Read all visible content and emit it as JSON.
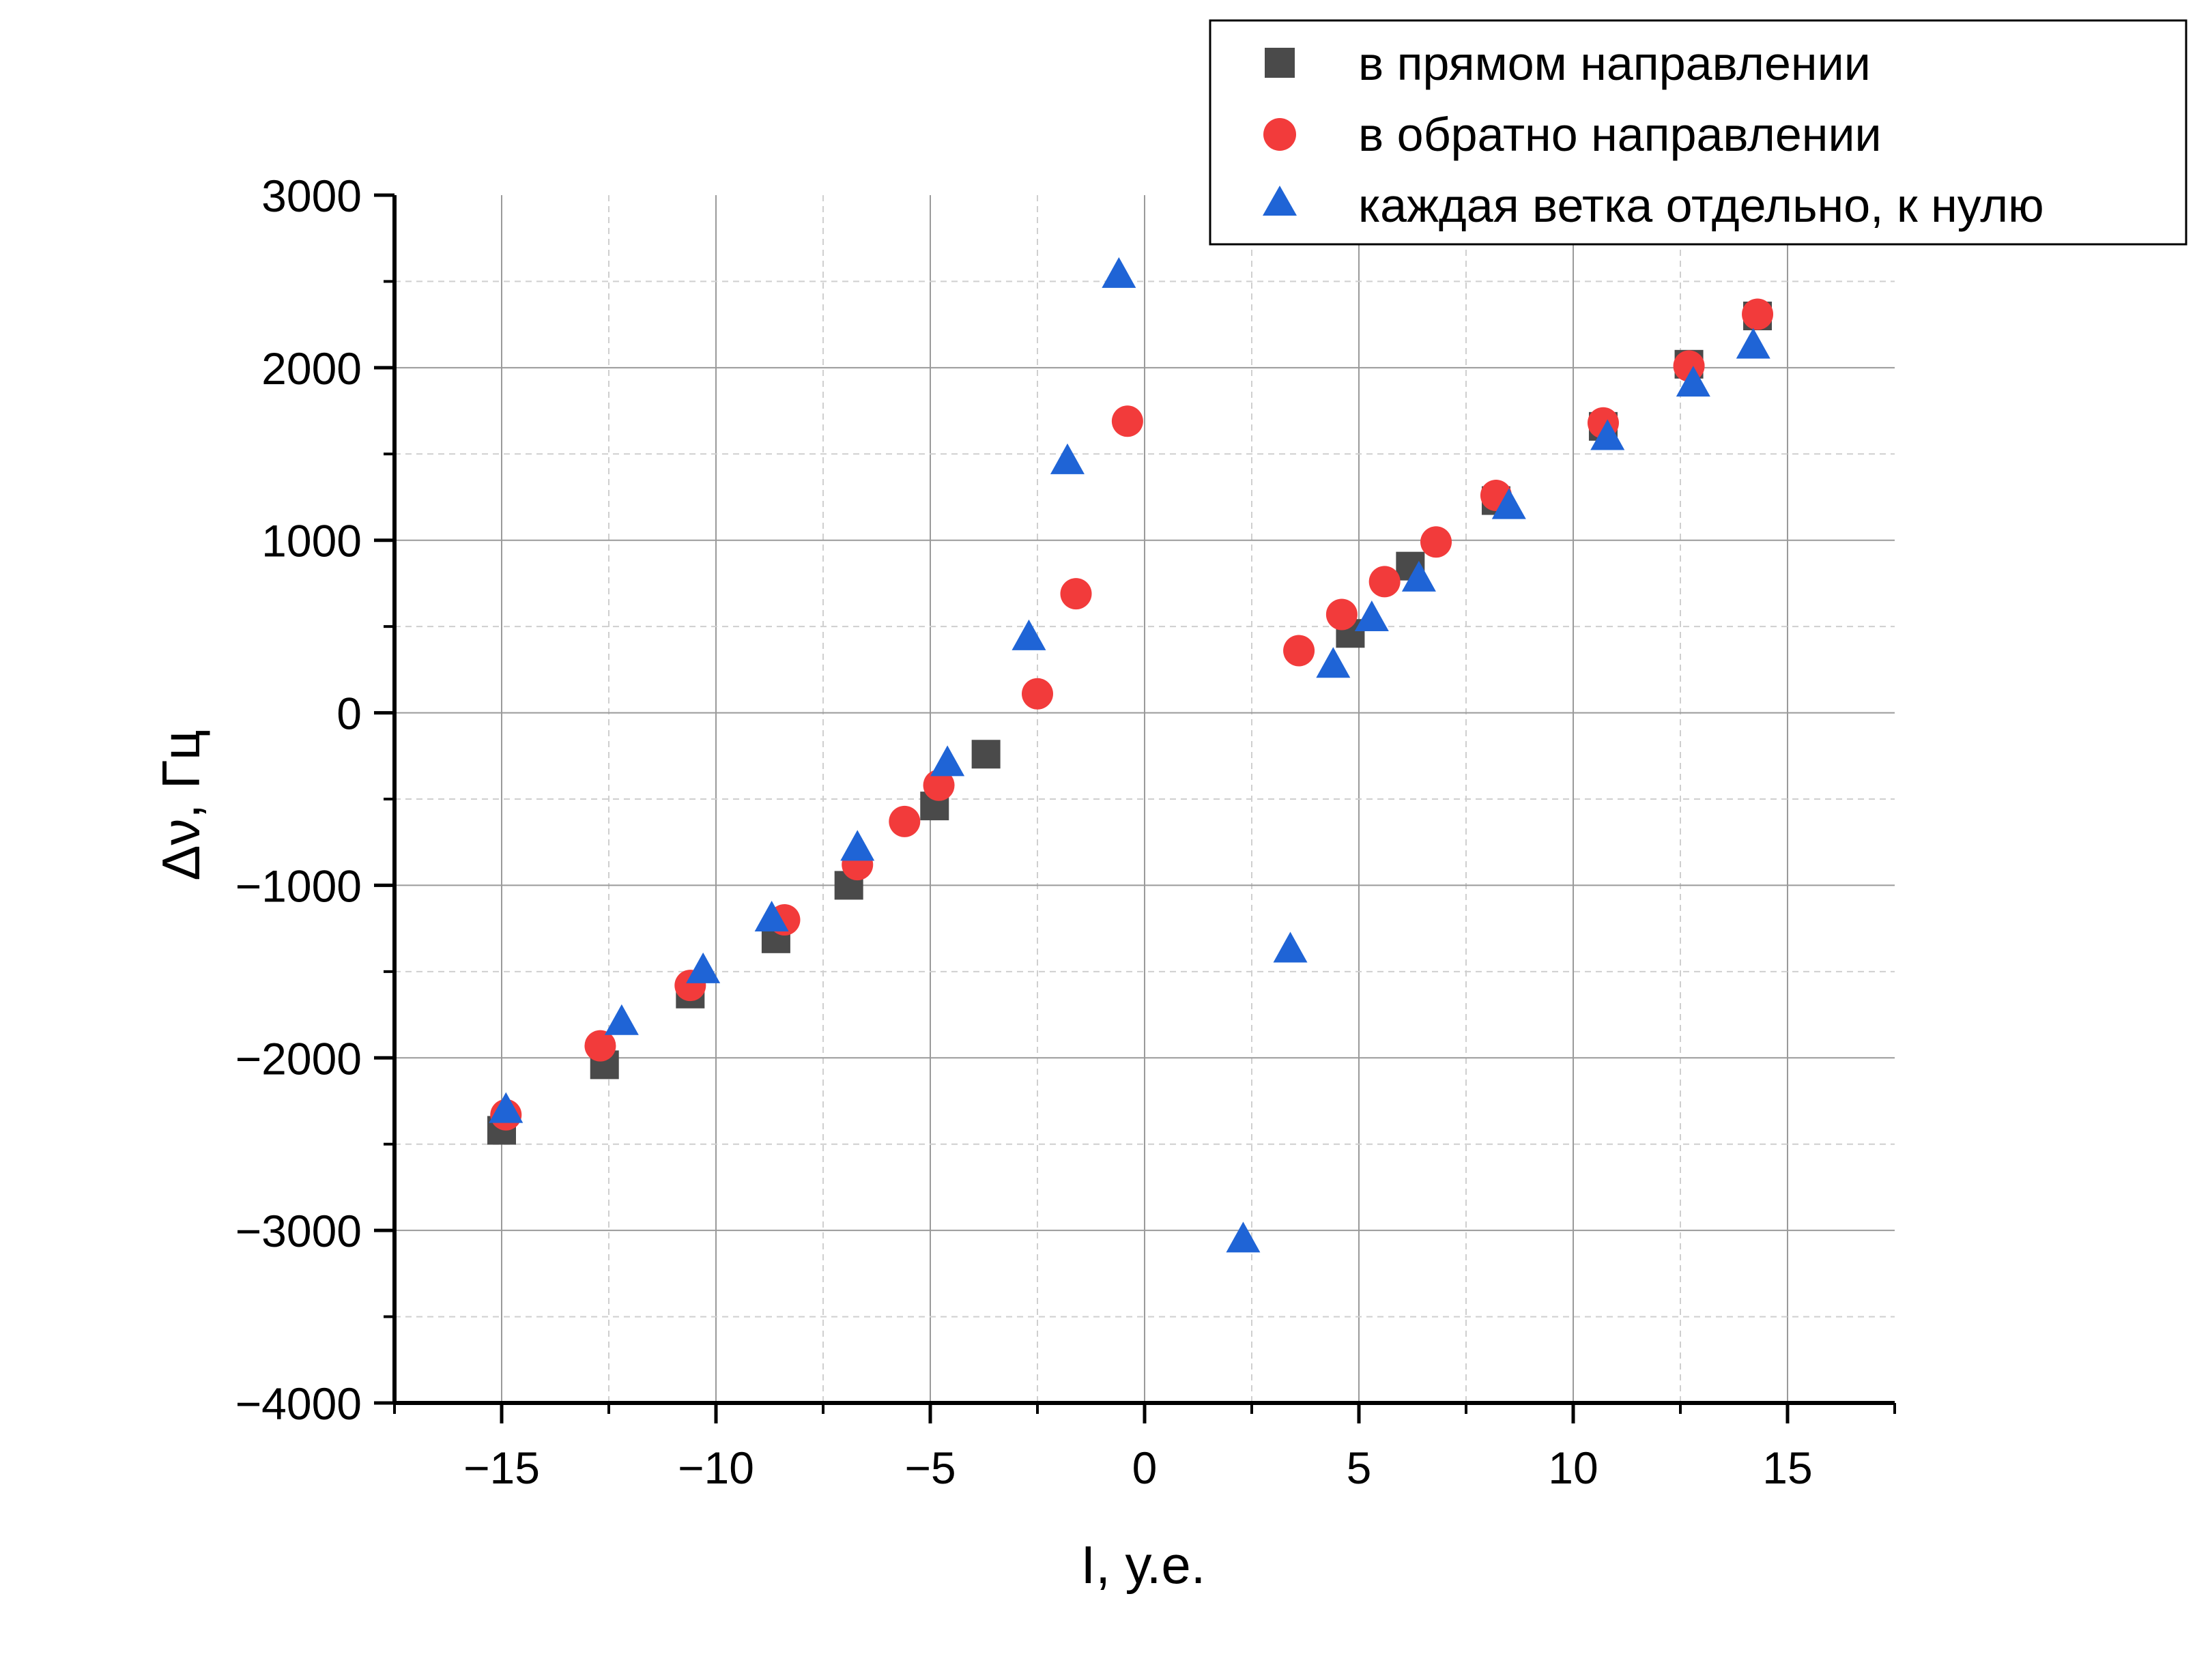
{
  "chart_data": {
    "type": "scatter",
    "xlabel": "I, у.е.",
    "ylabel": "Δν, Гц",
    "xlim": [
      -17.5,
      17.5
    ],
    "ylim": [
      -4000,
      3000
    ],
    "x_ticks": [
      -15,
      -10,
      -5,
      0,
      5,
      10,
      15
    ],
    "x_tick_labels": [
      "−15",
      "−10",
      "−5",
      "0",
      "5",
      "10",
      "15"
    ],
    "y_ticks": [
      -4000,
      -3000,
      -2000,
      -1000,
      0,
      1000,
      2000,
      3000
    ],
    "y_tick_labels": [
      "−4000",
      "−3000",
      "−2000",
      "−1000",
      "0",
      "1000",
      "2000",
      "3000"
    ],
    "grid": true,
    "legend_position": "top-right",
    "series": [
      {
        "name": "в прямом направлении",
        "marker": "square",
        "color": "#4a4a4a",
        "points": [
          [
            -15.0,
            -2420
          ],
          [
            -12.6,
            -2040
          ],
          [
            -10.6,
            -1630
          ],
          [
            -8.6,
            -1310
          ],
          [
            -6.9,
            -1000
          ],
          [
            -4.9,
            -540
          ],
          [
            -3.7,
            -240
          ],
          [
            4.8,
            460
          ],
          [
            6.2,
            850
          ],
          [
            8.2,
            1230
          ],
          [
            10.7,
            1660
          ],
          [
            12.7,
            2020
          ],
          [
            14.3,
            2300
          ]
        ]
      },
      {
        "name": "в обратно направлении",
        "marker": "circle",
        "color": "#f23b3b",
        "points": [
          [
            -14.9,
            -2330
          ],
          [
            -12.7,
            -1930
          ],
          [
            -10.6,
            -1580
          ],
          [
            -8.4,
            -1200
          ],
          [
            -6.7,
            -880
          ],
          [
            -5.6,
            -630
          ],
          [
            -4.8,
            -420
          ],
          [
            -2.5,
            110
          ],
          [
            -1.6,
            690
          ],
          [
            -0.4,
            1690
          ],
          [
            3.6,
            360
          ],
          [
            4.6,
            570
          ],
          [
            5.6,
            760
          ],
          [
            6.8,
            990
          ],
          [
            8.2,
            1260
          ],
          [
            10.7,
            1680
          ],
          [
            12.7,
            2010
          ],
          [
            14.3,
            2310
          ]
        ]
      },
      {
        "name": "каждая ветка отдельно, к нулю",
        "marker": "triangle",
        "color": "#1f64d6",
        "points": [
          [
            -14.9,
            -2310
          ],
          [
            -12.2,
            -1800
          ],
          [
            -10.3,
            -1500
          ],
          [
            -8.7,
            -1200
          ],
          [
            -6.7,
            -790
          ],
          [
            -4.6,
            -300
          ],
          [
            -2.7,
            430
          ],
          [
            -1.8,
            1450
          ],
          [
            -0.6,
            2530
          ],
          [
            2.3,
            -3060
          ],
          [
            3.4,
            -1380
          ],
          [
            4.4,
            270
          ],
          [
            5.3,
            540
          ],
          [
            6.4,
            770
          ],
          [
            8.5,
            1190
          ],
          [
            10.8,
            1590
          ],
          [
            12.8,
            1900
          ],
          [
            14.2,
            2120
          ]
        ]
      }
    ]
  }
}
